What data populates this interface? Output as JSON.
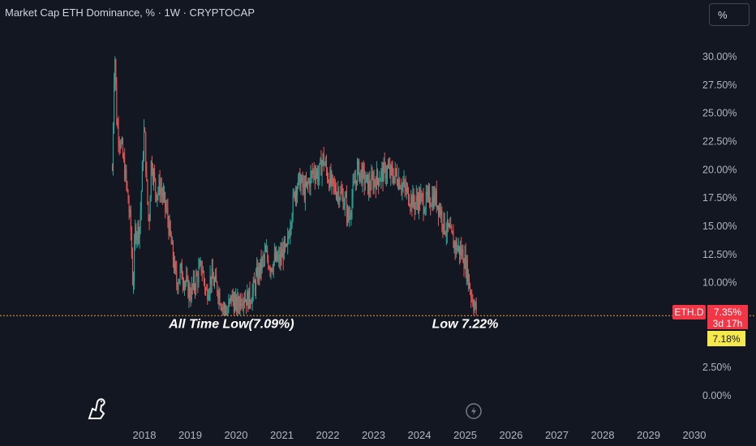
{
  "header": {
    "title": "Market Cap ETH Dominance, % · 1W · CRYPTOCAP",
    "scale_label": "%"
  },
  "price_tags": {
    "symbol": "ETH.D",
    "last": "7.35%",
    "countdown": "3d 17h",
    "low": "7.18%"
  },
  "colors": {
    "up": "#26a69a",
    "down": "#ef5350",
    "background": "#131722",
    "low_line": "#f0a030",
    "low_tag": "#f5e94b"
  },
  "chart_data": {
    "type": "candlestick",
    "title": "Market Cap ETH Dominance, % · 1W · CRYPTOCAP",
    "y_unit": "%",
    "ylim": [
      -0.5,
      33
    ],
    "y_ticks": [
      "30.00%",
      "27.50%",
      "25.00%",
      "22.50%",
      "20.00%",
      "17.50%",
      "15.00%",
      "12.50%",
      "10.00%",
      "2.50%",
      "0.00%"
    ],
    "x_ticks": [
      "2018",
      "2019",
      "2020",
      "2021",
      "2022",
      "2023",
      "2024",
      "2025",
      "2026",
      "2027",
      "2028",
      "2029",
      "2030"
    ],
    "horizontal_line": 7.09,
    "annotations": [
      {
        "text": "All Time Low(7.09%)",
        "x": 2019.9,
        "y": 6.0
      },
      {
        "text": "Low 7.22%",
        "x": 2025.0,
        "y": 6.0
      }
    ],
    "series": [
      {
        "values": [
          [
            2017.3,
            20.0
          ],
          [
            2017.35,
            31.0
          ],
          [
            2017.4,
            24.0
          ],
          [
            2017.5,
            22.0
          ],
          [
            2017.6,
            19.0
          ],
          [
            2017.7,
            15.0
          ],
          [
            2017.75,
            9.5
          ],
          [
            2017.8,
            14.5
          ],
          [
            2017.9,
            15.0
          ],
          [
            2018.0,
            24.0
          ],
          [
            2018.05,
            18.5
          ],
          [
            2018.1,
            15.0
          ],
          [
            2018.15,
            21.0
          ],
          [
            2018.25,
            18.0
          ],
          [
            2018.35,
            18.5
          ],
          [
            2018.5,
            16.0
          ],
          [
            2018.6,
            13.0
          ],
          [
            2018.7,
            10.0
          ],
          [
            2018.8,
            11.0
          ],
          [
            2019.0,
            9.0
          ],
          [
            2019.1,
            10.0
          ],
          [
            2019.25,
            11.5
          ],
          [
            2019.35,
            9.0
          ],
          [
            2019.45,
            10.5
          ],
          [
            2019.6,
            9.5
          ],
          [
            2019.7,
            8.0
          ],
          [
            2019.8,
            7.2
          ],
          [
            2019.9,
            8.8
          ],
          [
            2020.0,
            7.8
          ],
          [
            2020.15,
            9.0
          ],
          [
            2020.25,
            8.5
          ],
          [
            2020.35,
            9.0
          ],
          [
            2020.45,
            10.5
          ],
          [
            2020.55,
            11.5
          ],
          [
            2020.65,
            12.5
          ],
          [
            2020.75,
            11.5
          ],
          [
            2020.85,
            12.0
          ],
          [
            2020.95,
            12.0
          ],
          [
            2021.05,
            13.0
          ],
          [
            2021.1,
            12.5
          ],
          [
            2021.2,
            16.0
          ],
          [
            2021.3,
            18.5
          ],
          [
            2021.4,
            19.0
          ],
          [
            2021.5,
            18.0
          ],
          [
            2021.6,
            19.0
          ],
          [
            2021.7,
            20.0
          ],
          [
            2021.8,
            19.5
          ],
          [
            2021.9,
            21.0
          ],
          [
            2022.0,
            19.5
          ],
          [
            2022.1,
            18.5
          ],
          [
            2022.25,
            18.0
          ],
          [
            2022.4,
            17.0
          ],
          [
            2022.45,
            15.5
          ],
          [
            2022.55,
            18.0
          ],
          [
            2022.65,
            20.0
          ],
          [
            2022.75,
            19.5
          ],
          [
            2022.9,
            18.5
          ],
          [
            2023.0,
            19.0
          ],
          [
            2023.15,
            19.5
          ],
          [
            2023.3,
            20.0
          ],
          [
            2023.4,
            19.5
          ],
          [
            2023.5,
            19.5
          ],
          [
            2023.65,
            18.5
          ],
          [
            2023.8,
            17.5
          ],
          [
            2023.9,
            17.0
          ],
          [
            2024.0,
            17.5
          ],
          [
            2024.1,
            17.0
          ],
          [
            2024.25,
            17.5
          ],
          [
            2024.35,
            17.5
          ],
          [
            2024.45,
            16.5
          ],
          [
            2024.55,
            15.0
          ],
          [
            2024.65,
            14.5
          ],
          [
            2024.75,
            13.5
          ],
          [
            2024.85,
            13.0
          ],
          [
            2024.95,
            12.5
          ],
          [
            2025.05,
            11.0
          ],
          [
            2025.1,
            9.5
          ],
          [
            2025.2,
            8.0
          ],
          [
            2025.25,
            7.35
          ]
        ]
      }
    ]
  }
}
